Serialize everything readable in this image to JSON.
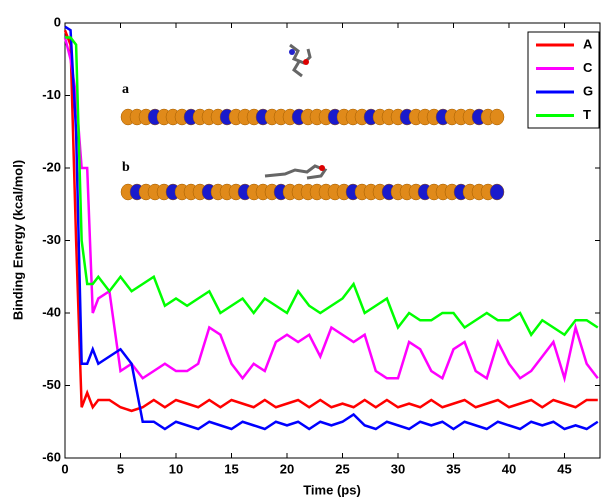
{
  "chart_data": {
    "type": "line",
    "xlabel": "Time (ps)",
    "ylabel": "Binding Energy (kcal/mol)",
    "inset_labels": [
      "a",
      "b"
    ],
    "x": [
      0,
      0.5,
      1,
      1.5,
      2,
      2.5,
      3,
      4,
      5,
      6,
      7,
      8,
      9,
      10,
      11,
      12,
      13,
      14,
      15,
      16,
      17,
      18,
      19,
      20,
      21,
      22,
      23,
      24,
      25,
      26,
      27,
      28,
      29,
      30,
      31,
      32,
      33,
      34,
      35,
      36,
      37,
      38,
      39,
      40,
      41,
      42,
      43,
      44,
      45,
      46,
      47,
      48
    ],
    "series": [
      {
        "name": "A",
        "color": "#ff0000",
        "values": [
          -1,
          -3,
          -30,
          -53,
          -51,
          -53,
          -52,
          -52,
          -53,
          -53.5,
          -53,
          -52,
          -53,
          -52,
          -52.5,
          -53,
          -52,
          -53,
          -52,
          -52.5,
          -53,
          -52,
          -53,
          -52.5,
          -52,
          -53,
          -52,
          -53,
          -52.5,
          -53,
          -52,
          -53,
          -52,
          -53,
          -52.5,
          -53,
          -52,
          -53,
          -52.5,
          -52,
          -53,
          -52.5,
          -52,
          -53,
          -52.5,
          -52,
          -53,
          -52,
          -52.5,
          -53,
          -52,
          -52
        ]
      },
      {
        "name": "C",
        "color": "#ff00ff",
        "values": [
          -2,
          -5,
          -10,
          -20,
          -20,
          -40,
          -38,
          -37,
          -48,
          -47,
          -49,
          -48,
          -47,
          -48,
          -48,
          -47,
          -42,
          -43,
          -47,
          -49,
          -47,
          -48,
          -44,
          -43,
          -44,
          -43,
          -46,
          -42,
          -43,
          -44,
          -43,
          -48,
          -49,
          -49,
          -44,
          -45,
          -48,
          -49,
          -45,
          -44,
          -48,
          -49,
          -44,
          -47,
          -49,
          -48,
          -46,
          -44,
          -49,
          -42,
          -47,
          -49
        ]
      },
      {
        "name": "G",
        "color": "#0000ff",
        "values": [
          -0.5,
          -1,
          -15,
          -47,
          -47,
          -45,
          -47,
          -46,
          -45,
          -47,
          -55,
          -55,
          -56,
          -55,
          -55.5,
          -56,
          -55,
          -55.5,
          -56,
          -55,
          -55.5,
          -56,
          -55,
          -55.5,
          -55,
          -56,
          -55,
          -55.5,
          -55,
          -54,
          -55.5,
          -56,
          -55,
          -55.5,
          -56,
          -55,
          -55.5,
          -55,
          -56,
          -55,
          -55.5,
          -56,
          -55,
          -55.5,
          -56,
          -55,
          -55.5,
          -55,
          -56,
          -55.5,
          -56,
          -55
        ]
      },
      {
        "name": "T",
        "color": "#00ff00",
        "values": [
          -2,
          -2,
          -3,
          -30,
          -36,
          -36,
          -35,
          -37,
          -35,
          -37,
          -36,
          -35,
          -39,
          -38,
          -39,
          -38,
          -37,
          -40,
          -39,
          -38,
          -40,
          -38,
          -39,
          -40,
          -37,
          -39,
          -40,
          -39,
          -38,
          -36,
          -40,
          -39,
          -38,
          -42,
          -40,
          -41,
          -41,
          -40,
          -40,
          -42,
          -41,
          -40,
          -41,
          -41,
          -40,
          -43,
          -41,
          -42,
          -43,
          -41,
          -41,
          -42
        ]
      }
    ],
    "xlim": [
      0,
      48.2
    ],
    "ylim": [
      -60,
      0
    ],
    "xticks": [
      0,
      5,
      10,
      15,
      20,
      25,
      30,
      35,
      40,
      45
    ],
    "yticks": [
      0,
      -10,
      -20,
      -30,
      -40,
      -50,
      -60
    ],
    "legend": "upper right"
  }
}
